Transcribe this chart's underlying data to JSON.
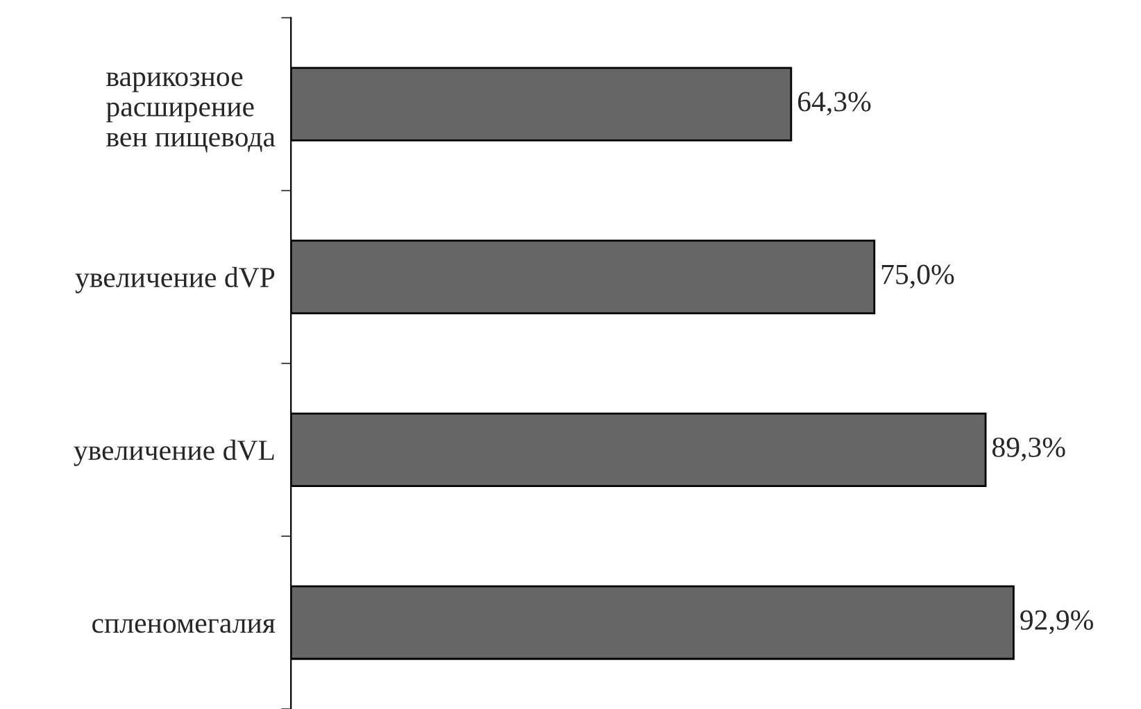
{
  "chart_data": {
    "type": "bar",
    "orientation": "horizontal",
    "categories": [
      "варикозное\nрасширение\nвен пищевода",
      "увеличение dVP",
      "увеличение dVL",
      "спленомегалия"
    ],
    "values": [
      64.3,
      75.0,
      89.3,
      92.9
    ],
    "value_labels": [
      "64,3%",
      "75,0%",
      "89,3%",
      "92,9%"
    ],
    "color": "#666666",
    "tick_labels": "y",
    "grid": false,
    "legend": false
  }
}
